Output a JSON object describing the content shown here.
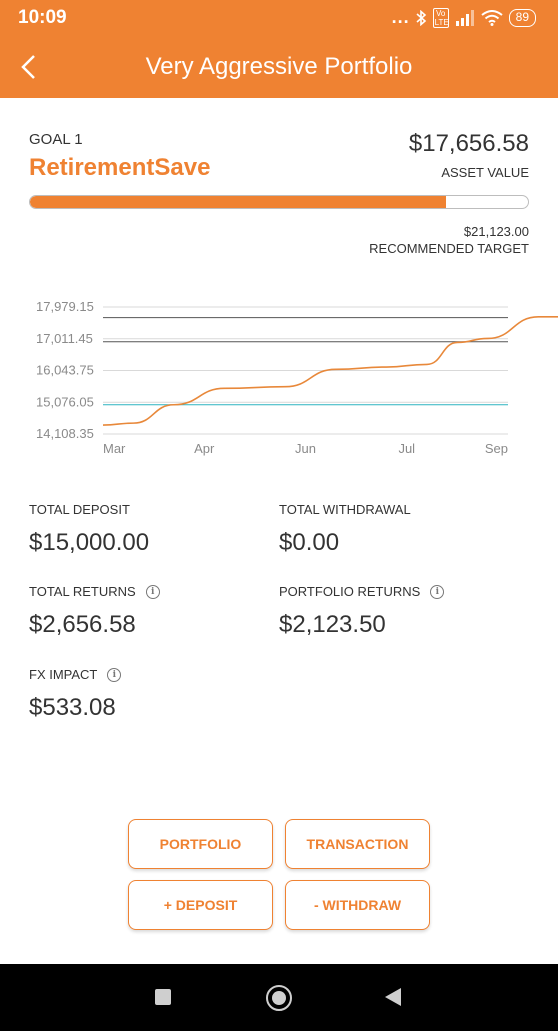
{
  "status_bar": {
    "time": "10:09",
    "dots": "...",
    "bluetooth_icon": "bluetooth-icon",
    "volte_badge": "Vo LTE",
    "signal_icon": "signal-icon",
    "wifi_icon": "wifi-icon",
    "battery": "89"
  },
  "header": {
    "title": "Very Aggressive Portfolio",
    "back_icon": "chevron-left-icon"
  },
  "goal": {
    "label": "GOAL 1",
    "name": "RetirementSave",
    "asset_value": "$17,656.58",
    "asset_label": "ASSET VALUE",
    "progress": 0.836,
    "target_value": "$21,123.00",
    "target_label": "RECOMMENDED TARGET"
  },
  "chart_data": {
    "type": "line",
    "x_labels": [
      "Mar",
      "Apr",
      "Jun",
      "Jul",
      "Sep"
    ],
    "y_ticks": [
      "17,979.15",
      "17,011.45",
      "16,043.75",
      "15,076.05",
      "14,108.35"
    ],
    "ylim": [
      14108.35,
      17979.15
    ],
    "reference_lines": [
      {
        "value": 17656.58,
        "color": "#555555"
      },
      {
        "value": 16920,
        "color": "#555555"
      },
      {
        "value": 15000,
        "color": "#2bb3c0"
      }
    ],
    "series": [
      {
        "color": "#e8883a",
        "x": [
          0,
          0.3,
          0.7,
          1.2,
          1.8,
          2.3,
          2.8,
          3.2,
          3.5,
          3.8,
          4.3,
          4.6,
          5
        ],
        "y": [
          14380,
          14440,
          15000,
          15500,
          15550,
          16080,
          16150,
          16230,
          16900,
          17020,
          17680,
          17680,
          17680
        ]
      }
    ],
    "grid": true,
    "colors": {
      "axis": "#d9d9d9",
      "tick_text": "#8a8a8a"
    }
  },
  "stats": {
    "total_deposit": {
      "label": "TOTAL DEPOSIT",
      "value": "$15,000.00"
    },
    "total_withdrawal": {
      "label": "TOTAL WITHDRAWAL",
      "value": "$0.00"
    },
    "total_returns": {
      "label": "TOTAL RETURNS",
      "value": "$2,656.58",
      "info_icon": "info-icon"
    },
    "portfolio_returns": {
      "label": "PORTFOLIO RETURNS",
      "value": "$2,123.50",
      "info_icon": "info-icon"
    },
    "fx_impact": {
      "label": "FX IMPACT",
      "value": "$533.08",
      "info_icon": "info-icon"
    }
  },
  "buttons": {
    "portfolio": "PORTFOLIO",
    "transaction": "TRANSACTION",
    "deposit": "+ DEPOSIT",
    "withdraw": "- WITHDRAW"
  },
  "nav_bar": {
    "recents_icon": "square-icon",
    "home_icon": "circle-home-icon",
    "back_icon": "triangle-back-icon"
  },
  "colors": {
    "accent": "#ef8232",
    "line": "#e8883a",
    "reference_teal": "#2bb3c0"
  }
}
